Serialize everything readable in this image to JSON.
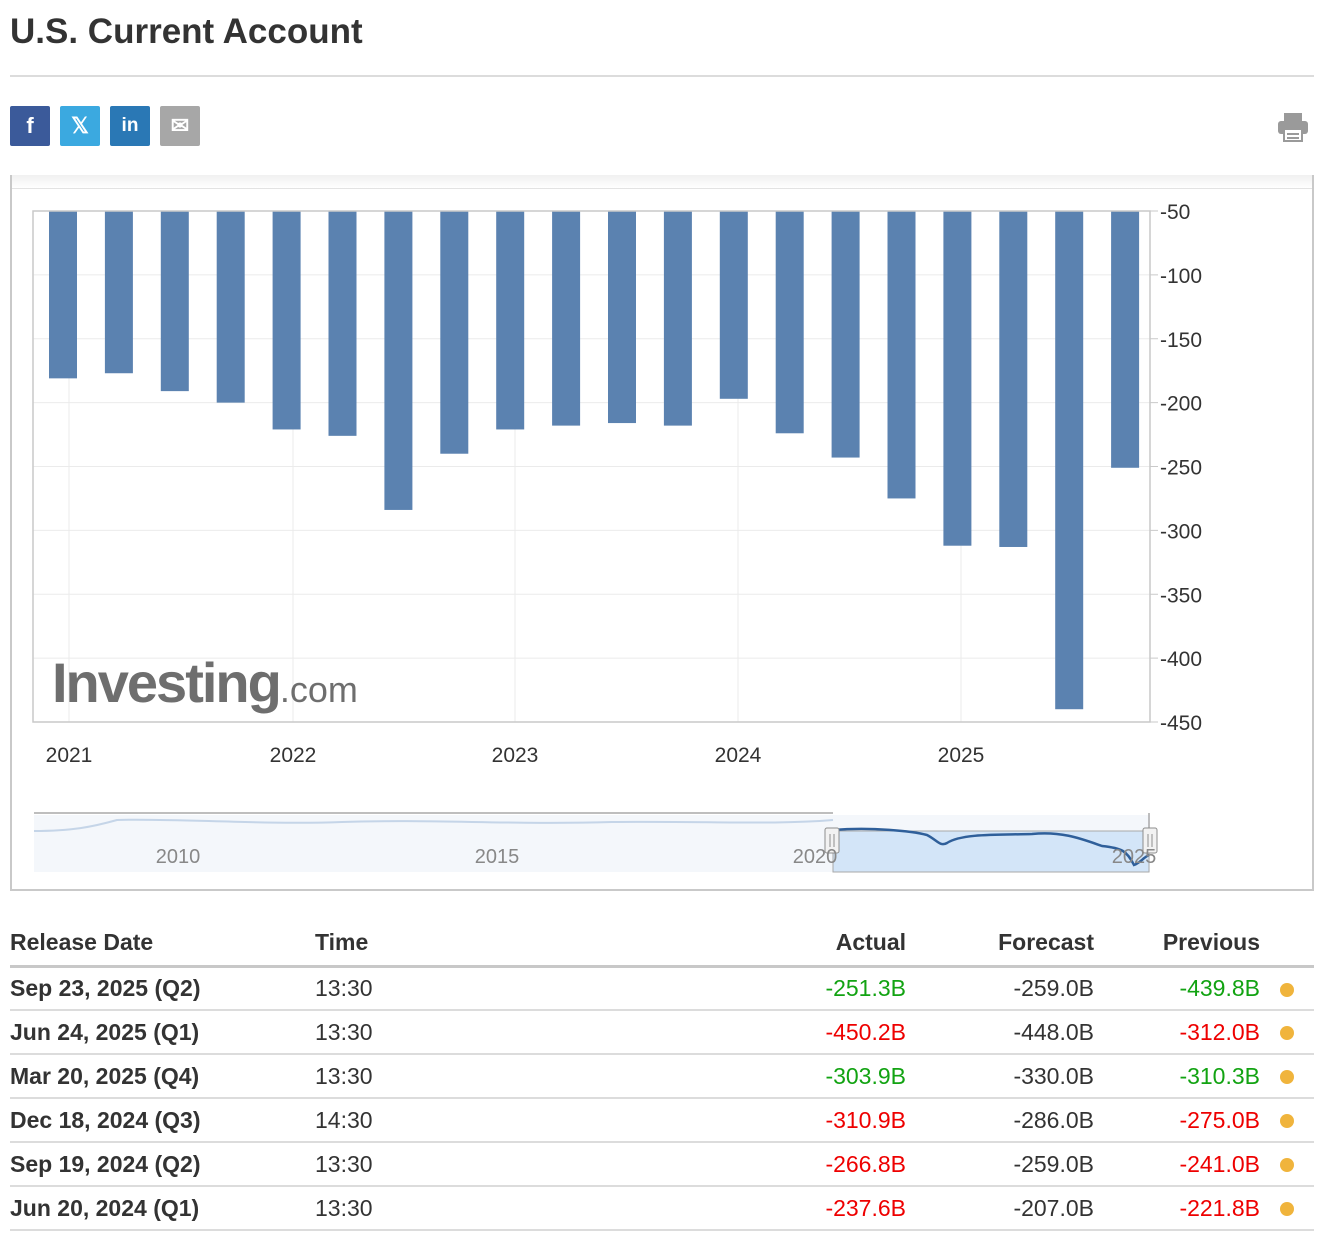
{
  "page": {
    "title": "U.S. Current Account"
  },
  "colors": {
    "bar": "#5b82b0",
    "negative": "#ee0000",
    "positive": "#12a312",
    "dot": "#f0b43c"
  },
  "share": [
    {
      "name": "facebook-share-button",
      "icon": "facebook-icon",
      "glyph": "f"
    },
    {
      "name": "twitter-share-button",
      "icon": "x-icon",
      "glyph": "𝕏"
    },
    {
      "name": "linkedin-share-button",
      "icon": "linkedin-icon",
      "glyph": "in"
    },
    {
      "name": "email-share-button",
      "icon": "mail-icon",
      "glyph": "✉"
    }
  ],
  "watermark": "Investing.com",
  "chart_data": {
    "type": "bar",
    "title": "",
    "xlabel": "",
    "ylabel": "",
    "ylim": [
      -450,
      -50
    ],
    "yticks": [
      -50,
      -100,
      -150,
      -200,
      -250,
      -300,
      -350,
      -400,
      -450
    ],
    "x_tick_labels": [
      "2021",
      "2022",
      "2023",
      "2024",
      "2025"
    ],
    "values": [
      -181,
      -177,
      -191,
      -200,
      -221,
      -226,
      -284,
      -240,
      -221,
      -218,
      -216,
      -218,
      -197,
      -224,
      -243,
      -275,
      -312,
      -313,
      -440,
      -251
    ],
    "navigator": {
      "tick_labels": [
        "2010",
        "2015",
        "2020",
        "2025"
      ]
    }
  },
  "table": {
    "headers": {
      "date": "Release Date",
      "time": "Time",
      "actual": "Actual",
      "forecast": "Forecast",
      "previous": "Previous"
    },
    "rows": [
      {
        "date": "Sep 23, 2025 (Q2)",
        "time": "13:30",
        "actual": "-251.3B",
        "actual_status": "pos",
        "forecast": "-259.0B",
        "previous": "-439.8B",
        "previous_status": "pos"
      },
      {
        "date": "Jun 24, 2025 (Q1)",
        "time": "13:30",
        "actual": "-450.2B",
        "actual_status": "neg",
        "forecast": "-448.0B",
        "previous": "-312.0B",
        "previous_status": "neg"
      },
      {
        "date": "Mar 20, 2025 (Q4)",
        "time": "13:30",
        "actual": "-303.9B",
        "actual_status": "pos",
        "forecast": "-330.0B",
        "previous": "-310.3B",
        "previous_status": "pos"
      },
      {
        "date": "Dec 18, 2024 (Q3)",
        "time": "14:30",
        "actual": "-310.9B",
        "actual_status": "neg",
        "forecast": "-286.0B",
        "previous": "-275.0B",
        "previous_status": "neg"
      },
      {
        "date": "Sep 19, 2024 (Q2)",
        "time": "13:30",
        "actual": "-266.8B",
        "actual_status": "neg",
        "forecast": "-259.0B",
        "previous": "-241.0B",
        "previous_status": "neg"
      },
      {
        "date": "Jun 20, 2024 (Q1)",
        "time": "13:30",
        "actual": "-237.6B",
        "actual_status": "neg",
        "forecast": "-207.0B",
        "previous": "-221.8B",
        "previous_status": "neg"
      }
    ]
  }
}
